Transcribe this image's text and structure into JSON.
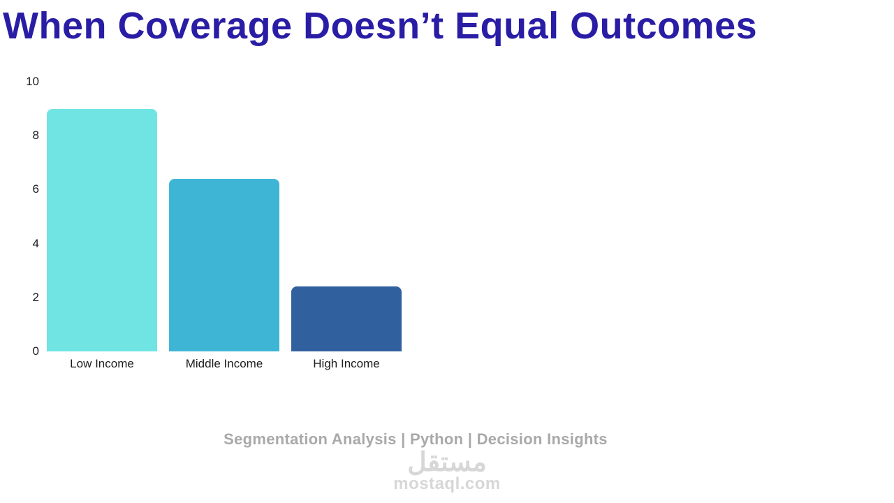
{
  "title": "When Coverage Doesn’t Equal Outcomes",
  "footer": {
    "caption": "Segmentation Analysis | Python | Decision Insights",
    "watermark_arabic": "مستقل",
    "watermark_domain": "mostaql.com"
  },
  "colors": {
    "title": "#2a1da5",
    "bars": [
      "#6FE4E3",
      "#3FB5D6",
      "#31609F"
    ],
    "caption": "#a9a9a9",
    "watermark": "#d7d7d7"
  },
  "chart_data": {
    "type": "bar",
    "categories": [
      "Low Income",
      "Middle Income",
      "High Income"
    ],
    "values": [
      9,
      6.4,
      2.4
    ],
    "title": "When Coverage Doesn’t Equal Outcomes",
    "xlabel": "",
    "ylabel": "",
    "ylim": [
      0,
      10
    ],
    "yticks": [
      0,
      2,
      4,
      6,
      8,
      10
    ],
    "grid": false,
    "legend": false
  }
}
